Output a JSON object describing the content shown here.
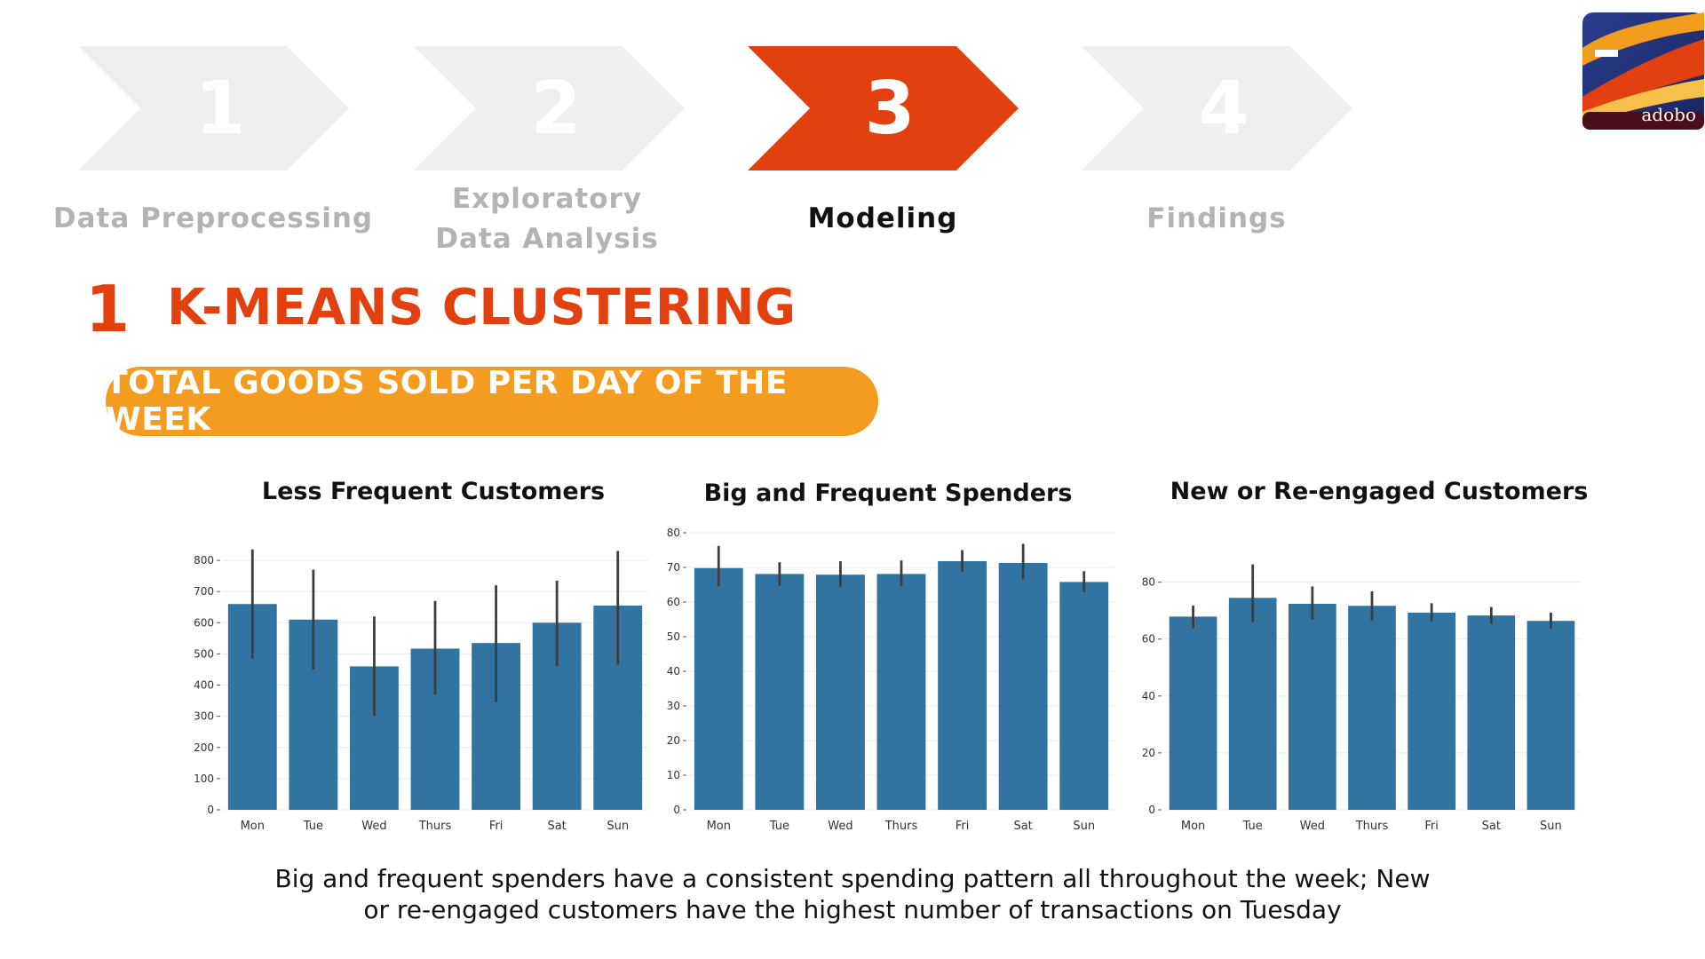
{
  "steps": [
    {
      "number": "1",
      "label_lines": [
        "Data Preprocessing"
      ],
      "active": false
    },
    {
      "number": "2",
      "label_lines": [
        "Exploratory",
        "Data Analysis"
      ],
      "active": false
    },
    {
      "number": "3",
      "label_lines": [
        "Modeling"
      ],
      "active": true
    },
    {
      "number": "4",
      "label_lines": [
        "Findings"
      ],
      "active": false
    }
  ],
  "logo": {
    "text": "adobo",
    "icon": "adobo-logo"
  },
  "section": {
    "number": "1",
    "title": "K-MEANS CLUSTERING"
  },
  "subtitle_pill": "TOTAL GOODS SOLD PER DAY OF THE WEEK",
  "colors": {
    "accent": "#e2410f",
    "pill": "#f39c1f",
    "bar": "#3274a1",
    "step_inactive": "#efefef"
  },
  "chart_data": [
    {
      "type": "bar",
      "title": "Less Frequent Customers",
      "categories": [
        "Mon",
        "Tue",
        "Wed",
        "Thurs",
        "Fri",
        "Sat",
        "Sun"
      ],
      "values": [
        660,
        610,
        460,
        517,
        535,
        600,
        655
      ],
      "error_low": [
        485,
        450,
        300,
        370,
        345,
        460,
        465
      ],
      "error_high": [
        835,
        770,
        620,
        670,
        720,
        735,
        830
      ],
      "yticks": [
        0,
        100,
        200,
        300,
        400,
        500,
        600,
        700,
        800
      ],
      "ylim": [
        0,
        860
      ],
      "grid": "y"
    },
    {
      "type": "bar",
      "title": "Big and Frequent Spenders",
      "categories": [
        "Mon",
        "Tue",
        "Wed",
        "Thurs",
        "Fri",
        "Sat",
        "Sun"
      ],
      "values": [
        69.8,
        68.1,
        67.9,
        68.1,
        71.8,
        71.3,
        65.8
      ],
      "error_low": [
        64.5,
        64.7,
        64.4,
        64.5,
        68.8,
        66.5,
        62.8
      ],
      "error_high": [
        76.2,
        71.5,
        71.8,
        72.0,
        75.0,
        76.8,
        68.9
      ],
      "yticks": [
        0,
        10,
        20,
        30,
        40,
        50,
        60,
        70,
        80
      ],
      "ylim": [
        0,
        80
      ],
      "grid": "y"
    },
    {
      "type": "bar",
      "title": "New or Re-engaged Customers",
      "categories": [
        "Mon",
        "Tue",
        "Wed",
        "Thurs",
        "Fri",
        "Sat",
        "Sun"
      ],
      "values": [
        67.9,
        74.5,
        72.4,
        71.7,
        69.3,
        68.3,
        66.4
      ],
      "error_low": [
        63.8,
        66.0,
        66.8,
        66.5,
        66.3,
        65.3,
        63.6
      ],
      "error_high": [
        71.8,
        86.3,
        78.5,
        76.8,
        72.6,
        71.3,
        69.3
      ],
      "yticks": [
        0,
        20,
        40,
        60,
        80
      ],
      "ylim": [
        0,
        88
      ],
      "grid": "y"
    }
  ],
  "caption_lines": [
    "Big and frequent spenders have a consistent spending pattern all throughout the week; New",
    "or re-engaged customers have the highest number of transactions on Tuesday"
  ]
}
